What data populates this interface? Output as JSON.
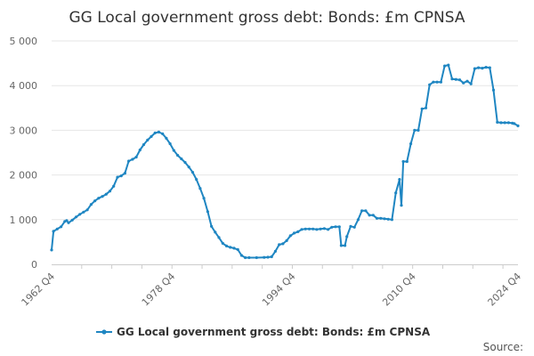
{
  "chart_data": {
    "type": "line",
    "title": "GG Local government gross debt: Bonds: £m CPNSA",
    "xlabel": "",
    "ylabel": "",
    "x_start": "1962 Q4",
    "x_end": "2024 Q4",
    "x_tick_labels": [
      "1962 Q4",
      "1978 Q4",
      "1994 Q4",
      "2010 Q4",
      "2024 Q4"
    ],
    "ylim": [
      0,
      5000
    ],
    "y_ticks": [
      0,
      1000,
      2000,
      3000,
      4000,
      5000
    ],
    "y_tick_labels": [
      "0",
      "1 000",
      "2 000",
      "3 000",
      "4 000",
      "5 000"
    ],
    "grid": true,
    "legend_position": "bottom",
    "series": [
      {
        "name": "GG Local government gross debt: Bonds: £m CPNSA",
        "color": "#1f86c2",
        "points": [
          [
            "1962 Q4",
            320
          ],
          [
            "1963 Q1",
            740
          ],
          [
            "1963 Q3",
            790
          ],
          [
            "1964 Q1",
            840
          ],
          [
            "1964 Q3",
            960
          ],
          [
            "1964 Q4",
            980
          ],
          [
            "1965 Q1",
            930
          ],
          [
            "1965 Q3",
            990
          ],
          [
            "1966 Q1",
            1060
          ],
          [
            "1966 Q3",
            1120
          ],
          [
            "1967 Q1",
            1170
          ],
          [
            "1967 Q3",
            1220
          ],
          [
            "1968 Q1",
            1340
          ],
          [
            "1968 Q3",
            1420
          ],
          [
            "1969 Q1",
            1480
          ],
          [
            "1969 Q3",
            1520
          ],
          [
            "1970 Q1",
            1570
          ],
          [
            "1970 Q3",
            1640
          ],
          [
            "1971 Q1",
            1750
          ],
          [
            "1971 Q3",
            1950
          ],
          [
            "1972 Q1",
            1980
          ],
          [
            "1972 Q3",
            2040
          ],
          [
            "1973 Q1",
            2310
          ],
          [
            "1973 Q3",
            2350
          ],
          [
            "1974 Q1",
            2400
          ],
          [
            "1974 Q3",
            2560
          ],
          [
            "1975 Q1",
            2680
          ],
          [
            "1975 Q3",
            2780
          ],
          [
            "1976 Q1",
            2860
          ],
          [
            "1976 Q3",
            2940
          ],
          [
            "1977 Q1",
            2960
          ],
          [
            "1977 Q3",
            2920
          ],
          [
            "1978 Q1",
            2820
          ],
          [
            "1978 Q3",
            2700
          ],
          [
            "1979 Q1",
            2550
          ],
          [
            "1979 Q3",
            2440
          ],
          [
            "1980 Q1",
            2360
          ],
          [
            "1980 Q3",
            2280
          ],
          [
            "1981 Q1",
            2180
          ],
          [
            "1981 Q3",
            2060
          ],
          [
            "1982 Q1",
            1900
          ],
          [
            "1982 Q3",
            1700
          ],
          [
            "1983 Q1",
            1480
          ],
          [
            "1983 Q3",
            1180
          ],
          [
            "1984 Q1",
            850
          ],
          [
            "1984 Q3",
            720
          ],
          [
            "1985 Q1",
            600
          ],
          [
            "1985 Q3",
            470
          ],
          [
            "1986 Q1",
            410
          ],
          [
            "1986 Q3",
            380
          ],
          [
            "1987 Q1",
            360
          ],
          [
            "1987 Q3",
            330
          ],
          [
            "1988 Q1",
            200
          ],
          [
            "1988 Q3",
            150
          ],
          [
            "1989 Q1",
            150
          ],
          [
            "1990 Q1",
            150
          ],
          [
            "1991 Q1",
            155
          ],
          [
            "1991 Q3",
            160
          ],
          [
            "1992 Q1",
            170
          ],
          [
            "1992 Q3",
            290
          ],
          [
            "1993 Q1",
            440
          ],
          [
            "1993 Q3",
            460
          ],
          [
            "1994 Q1",
            530
          ],
          [
            "1994 Q3",
            640
          ],
          [
            "1995 Q1",
            700
          ],
          [
            "1995 Q3",
            730
          ],
          [
            "1996 Q1",
            780
          ],
          [
            "1996 Q3",
            790
          ],
          [
            "1997 Q1",
            790
          ],
          [
            "1997 Q3",
            790
          ],
          [
            "1998 Q1",
            780
          ],
          [
            "1998 Q3",
            790
          ],
          [
            "1999 Q1",
            800
          ],
          [
            "1999 Q3",
            780
          ],
          [
            "2000 Q1",
            830
          ],
          [
            "2000 Q3",
            840
          ],
          [
            "2001 Q1",
            840
          ],
          [
            "2001 Q2",
            420
          ],
          [
            "2001 Q4",
            420
          ],
          [
            "2002 Q1",
            620
          ],
          [
            "2002 Q3",
            850
          ],
          [
            "2003 Q1",
            830
          ],
          [
            "2003 Q3",
            1000
          ],
          [
            "2004 Q1",
            1200
          ],
          [
            "2004 Q3",
            1200
          ],
          [
            "2005 Q1",
            1100
          ],
          [
            "2005 Q3",
            1100
          ],
          [
            "2006 Q1",
            1030
          ],
          [
            "2006 Q3",
            1030
          ],
          [
            "2007 Q1",
            1020
          ],
          [
            "2007 Q3",
            1010
          ],
          [
            "2008 Q1",
            1000
          ],
          [
            "2008 Q3",
            1600
          ],
          [
            "2009 Q1",
            1900
          ],
          [
            "2009 Q2",
            1320
          ],
          [
            "2009 Q3",
            2300
          ],
          [
            "2010 Q1",
            2300
          ],
          [
            "2010 Q3",
            2700
          ],
          [
            "2011 Q1",
            3000
          ],
          [
            "2011 Q3",
            3000
          ],
          [
            "2012 Q1",
            3480
          ],
          [
            "2012 Q3",
            3500
          ],
          [
            "2013 Q1",
            4020
          ],
          [
            "2013 Q3",
            4080
          ],
          [
            "2014 Q1",
            4080
          ],
          [
            "2014 Q3",
            4080
          ],
          [
            "2015 Q1",
            4440
          ],
          [
            "2015 Q3",
            4460
          ],
          [
            "2016 Q1",
            4150
          ],
          [
            "2016 Q3",
            4140
          ],
          [
            "2017 Q1",
            4130
          ],
          [
            "2017 Q3",
            4060
          ],
          [
            "2018 Q1",
            4100
          ],
          [
            "2018 Q3",
            4040
          ],
          [
            "2019 Q1",
            4380
          ],
          [
            "2019 Q3",
            4400
          ],
          [
            "2020 Q1",
            4390
          ],
          [
            "2020 Q3",
            4410
          ],
          [
            "2021 Q1",
            4400
          ],
          [
            "2021 Q3",
            3900
          ],
          [
            "2022 Q1",
            3180
          ],
          [
            "2022 Q3",
            3170
          ],
          [
            "2023 Q1",
            3170
          ],
          [
            "2023 Q3",
            3170
          ],
          [
            "2024 Q1",
            3160
          ],
          [
            "2024 Q2",
            3150
          ],
          [
            "2024 Q4",
            3100
          ]
        ]
      }
    ]
  },
  "footer": {
    "source_label": "Source:"
  }
}
